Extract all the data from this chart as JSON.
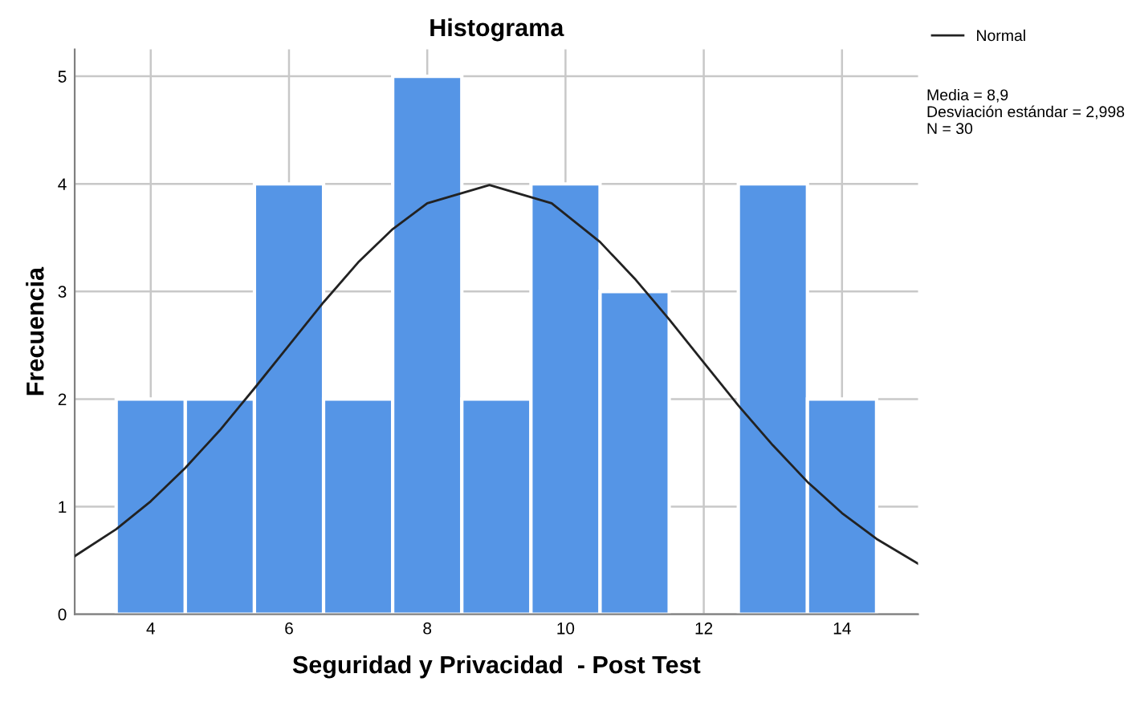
{
  "chart_data": {
    "type": "histogram",
    "title": "Histograma",
    "xlabel": "Seguridad y Privacidad  - Post Test",
    "ylabel": "Frecuencia",
    "bins": [
      3.5,
      4.5,
      5.5,
      6.5,
      7.5,
      8.5,
      9.5,
      10.5,
      11.5,
      12.5,
      13.5,
      14.5
    ],
    "values": [
      2,
      2,
      4,
      2,
      5,
      2,
      4,
      3,
      0,
      4,
      2
    ],
    "color": "#5595e6",
    "series": [
      {
        "type": "line",
        "name": "Normal",
        "color": "#222222",
        "x": [
          2.9,
          3.5,
          4.0,
          4.5,
          5.0,
          5.5,
          6.0,
          6.5,
          7.0,
          7.5,
          8.0,
          8.9,
          9.8,
          10.5,
          11.0,
          11.5,
          12.0,
          12.5,
          13.0,
          13.5,
          14.0,
          14.5,
          15.1
        ],
        "values": [
          0.54,
          0.79,
          1.05,
          1.36,
          1.71,
          2.1,
          2.5,
          2.9,
          3.27,
          3.58,
          3.82,
          3.99,
          3.82,
          3.46,
          3.12,
          2.74,
          2.34,
          1.94,
          1.57,
          1.23,
          0.94,
          0.7,
          0.47
        ]
      }
    ],
    "annotations": [
      "Media = 8,9\nDesviación estándar = 2,998\nN = 30"
    ],
    "xlim": [
      2.9,
      15.1
    ],
    "ylim": [
      0,
      5.25
    ],
    "xticks": [
      4,
      6,
      8,
      10,
      12,
      14
    ],
    "yticks": [
      0,
      1,
      2,
      3,
      4,
      5
    ],
    "grid": true,
    "legend": "top right"
  }
}
